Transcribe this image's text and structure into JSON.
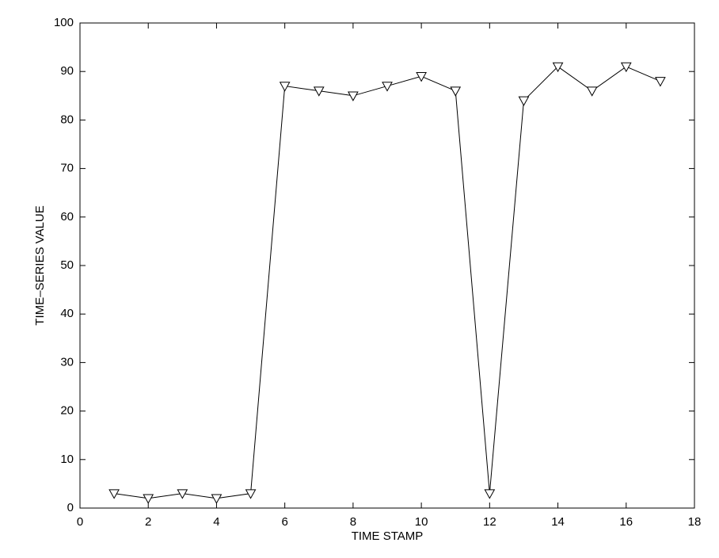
{
  "chart_data": {
    "type": "line",
    "x_label": "TIME STAMP",
    "y_label": "TIME–SERIES VALUE",
    "x": [
      1,
      2,
      3,
      4,
      5,
      6,
      7,
      8,
      9,
      10,
      11,
      12,
      13,
      14,
      15,
      16,
      17
    ],
    "values": [
      3,
      2,
      3,
      2,
      3,
      87,
      86,
      85,
      87,
      89,
      86,
      3,
      84,
      91,
      86,
      91,
      88
    ],
    "color": "#000000",
    "marker": "triangle-down",
    "xlim": [
      0,
      18
    ],
    "xticks": [
      0,
      2,
      4,
      6,
      8,
      10,
      12,
      14,
      16,
      18
    ],
    "ylim": [
      0,
      100
    ],
    "yticks": [
      0,
      10,
      20,
      30,
      40,
      50,
      60,
      70,
      80,
      90,
      100
    ],
    "grid": false
  }
}
